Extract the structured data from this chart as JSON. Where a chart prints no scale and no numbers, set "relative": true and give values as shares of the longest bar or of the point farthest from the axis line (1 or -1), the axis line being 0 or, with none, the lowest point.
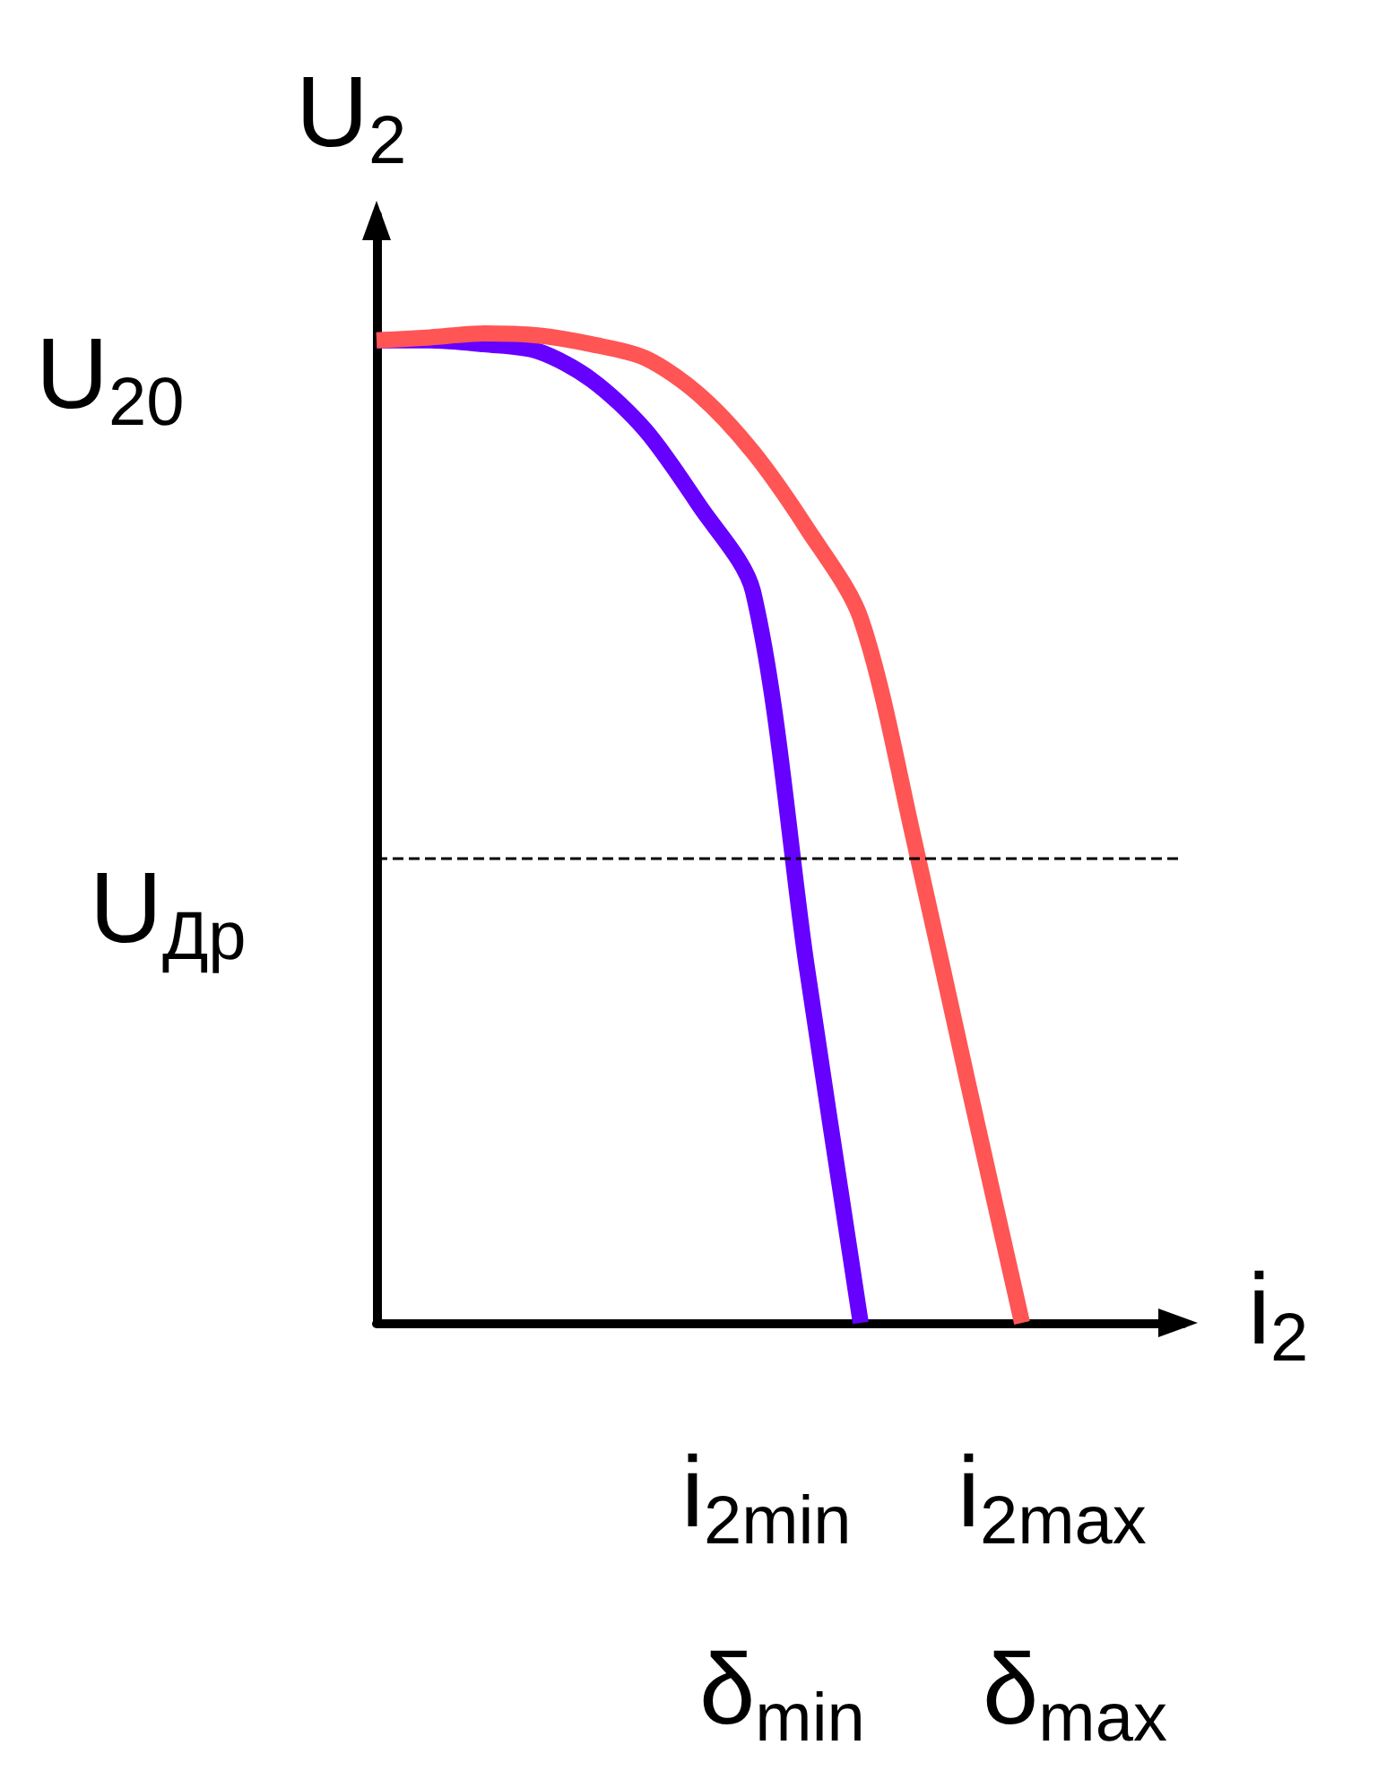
{
  "chart_data": {
    "type": "line",
    "relative": true,
    "xlabel": "i$_{2}$",
    "ylabel": "U$_{2}$",
    "categories": [
      null,
      null,
      null,
      null,
      null,
      null,
      null,
      null,
      null,
      null,
      null,
      null,
      null,
      null,
      null,
      null
    ],
    "series": [
      {
        "color": "#6600ff",
        "values": [
          0.993,
          0.993,
          0.989,
          0.982,
          0.953,
          0.902,
          0.826,
          0.739,
          0.359,
          0,
          null,
          null,
          null,
          null,
          null,
          null
        ]
      },
      {
        "color": "#ff5555",
        "values": [
          0.993,
          0.996,
          1,
          0.998,
          0.989,
          0.975,
          0.938,
          0.88,
          0.803,
          0.712,
          0.486,
          0.241,
          0,
          null,
          null,
          null
        ]
      }
    ],
    "ref_lines": [
      {
        "axis": "y",
        "value": 0.467,
        "label": "U$_{Др}$",
        "color": "#000000",
        "line_style": "dashed"
      }
    ],
    "annotations": [
      "U$_{20}$",
      "i$_{2min}$",
      "i$_{2max}$",
      "δ$_{min}$",
      "δ$_{max}$"
    ],
    "marker": "none",
    "line_style": "solid"
  }
}
